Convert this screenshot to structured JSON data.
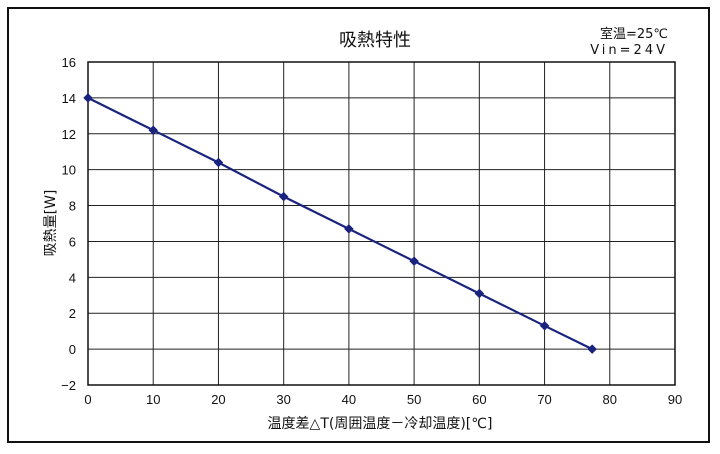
{
  "chart_data": {
    "type": "line",
    "title": "吸熱特性",
    "conditions": [
      "室温=25℃",
      "Vin=24V"
    ],
    "xlabel": "温度差△T(周囲温度－冷却温度)[℃]",
    "ylabel": "吸熱量[W]",
    "xlim": [
      0,
      90
    ],
    "ylim": [
      -2,
      16
    ],
    "xticks": [
      0,
      10,
      20,
      30,
      40,
      50,
      60,
      70,
      80,
      90
    ],
    "yticks": [
      -2,
      0,
      2,
      4,
      6,
      8,
      10,
      12,
      14,
      16
    ],
    "ytick_labels": [
      "−2",
      "0",
      "2",
      "4",
      "6",
      "8",
      "10",
      "12",
      "14",
      "16"
    ],
    "grid": true,
    "series": [
      {
        "color": "#1a237e",
        "marker": "diamond",
        "points": [
          {
            "x": 0,
            "y": 14.0
          },
          {
            "x": 10,
            "y": 12.2
          },
          {
            "x": 20,
            "y": 10.4
          },
          {
            "x": 30,
            "y": 8.5
          },
          {
            "x": 40,
            "y": 6.7
          },
          {
            "x": 50,
            "y": 4.9
          },
          {
            "x": 60,
            "y": 3.1
          },
          {
            "x": 70,
            "y": 1.3
          },
          {
            "x": 77.3,
            "y": 0.0
          }
        ]
      }
    ]
  }
}
